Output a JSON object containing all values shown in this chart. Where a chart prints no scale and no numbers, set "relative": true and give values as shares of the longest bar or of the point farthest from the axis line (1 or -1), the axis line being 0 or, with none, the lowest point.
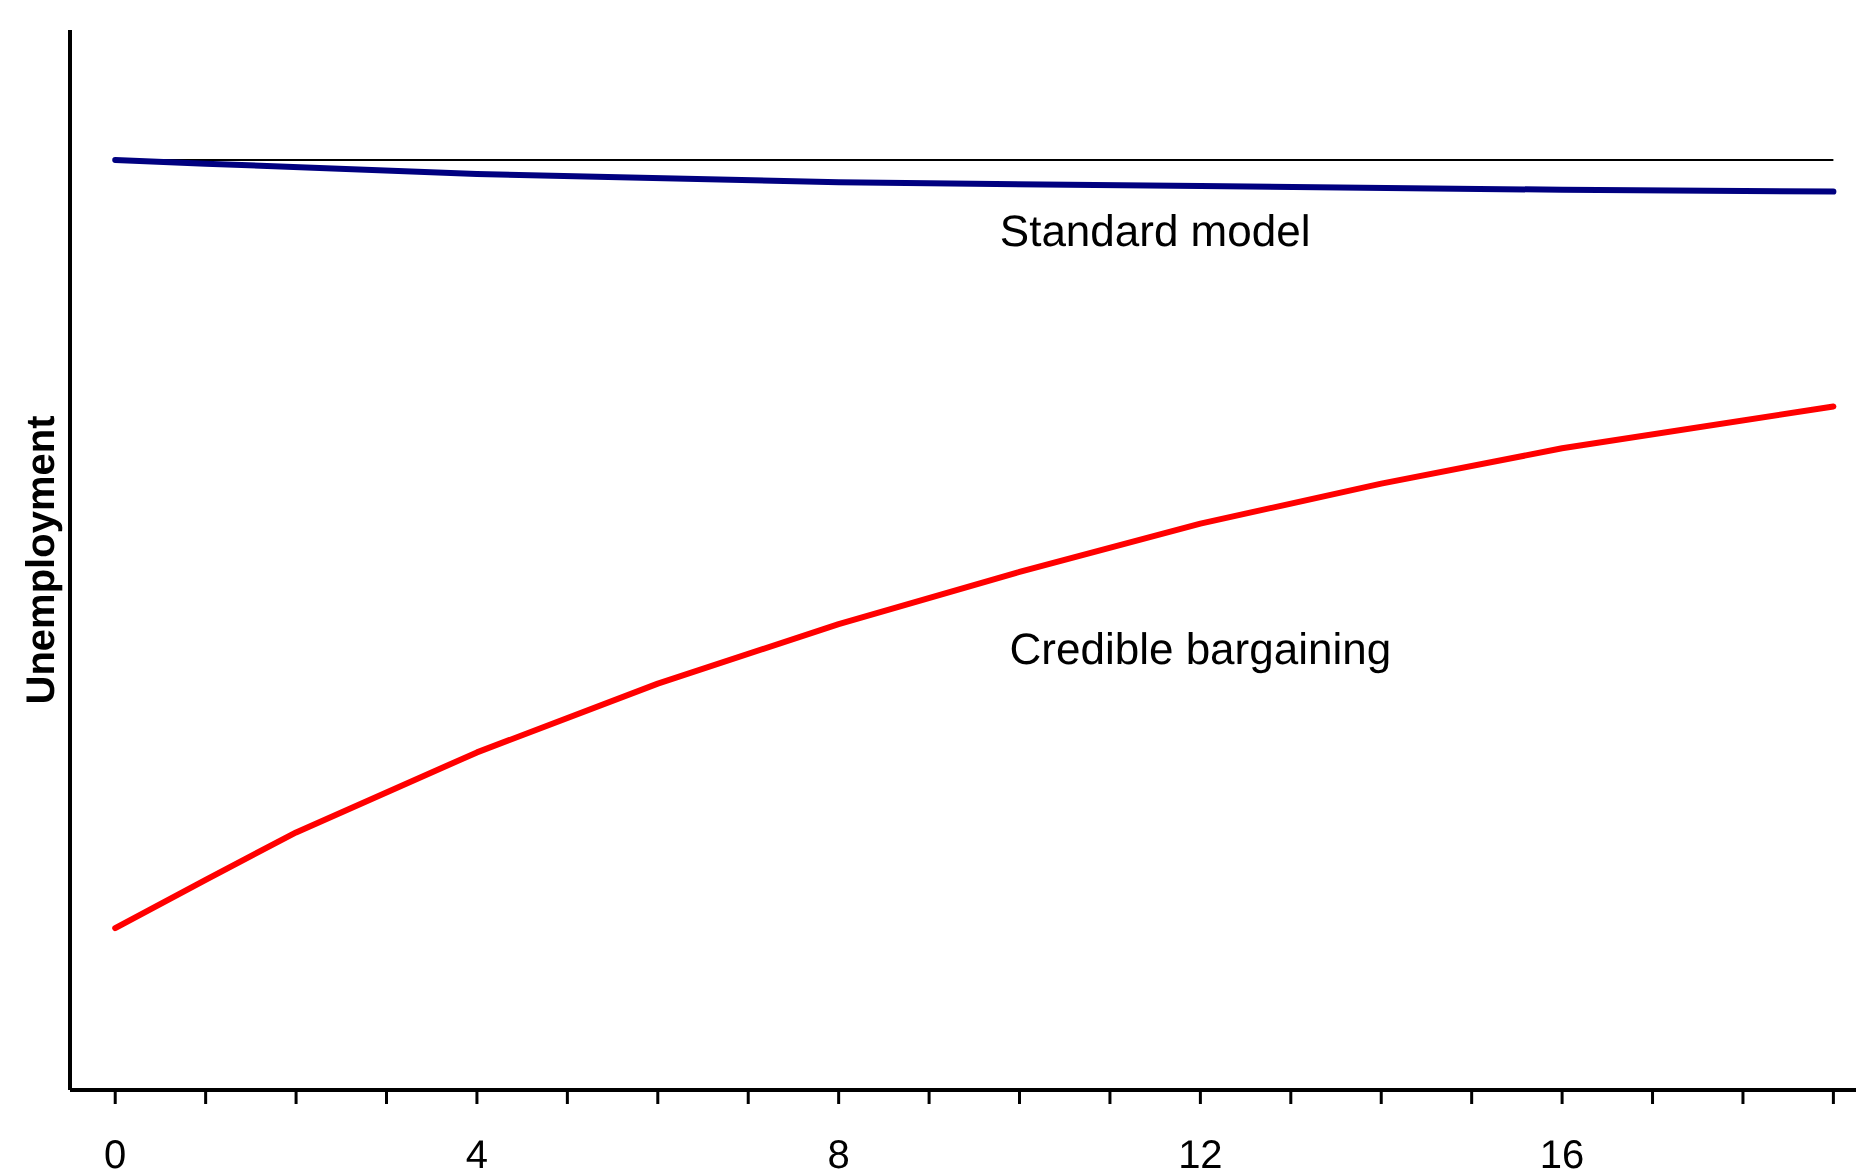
{
  "chart_data": {
    "type": "line",
    "ylabel": "Unemployment",
    "relative": true,
    "legend": false,
    "grid": false,
    "marker": "none",
    "line_style": "solid",
    "xlim": [
      -0.5,
      19.25
    ],
    "xticks": [
      0,
      {
        "value": 1,
        "label": null
      },
      {
        "value": 2,
        "label": null
      },
      {
        "value": 3,
        "label": null
      },
      4,
      {
        "value": 5,
        "label": null
      },
      {
        "value": 6,
        "label": null
      },
      {
        "value": 7,
        "label": null
      },
      8,
      {
        "value": 9,
        "label": null
      },
      {
        "value": 10,
        "label": null
      },
      {
        "value": 11,
        "label": null
      },
      12,
      {
        "value": 13,
        "label": null
      },
      {
        "value": 14,
        "label": null
      },
      {
        "value": 15,
        "label": null
      },
      16,
      {
        "value": 17,
        "label": null
      },
      {
        "value": 18,
        "label": null
      },
      {
        "value": 19,
        "label": null
      }
    ],
    "ref_lines": [
      {
        "axis": "y",
        "value": 1,
        "color": "#000000"
      }
    ],
    "series": [
      {
        "name": "Standard model",
        "color": "#000080",
        "x": [
          0,
          1,
          4,
          8,
          12,
          16,
          19
        ],
        "values": [
          1,
          0.996,
          0.985,
          0.976,
          0.972,
          0.968,
          0.966
        ]
      },
      {
        "name": "Credible bargaining",
        "color": "#ff0000",
        "x": [
          0,
          1,
          2,
          4,
          6,
          8,
          10,
          12,
          14,
          16,
          19
        ],
        "values": [
          0.174,
          0.226,
          0.277,
          0.363,
          0.437,
          0.501,
          0.557,
          0.609,
          0.652,
          0.69,
          0.735
        ]
      }
    ]
  }
}
